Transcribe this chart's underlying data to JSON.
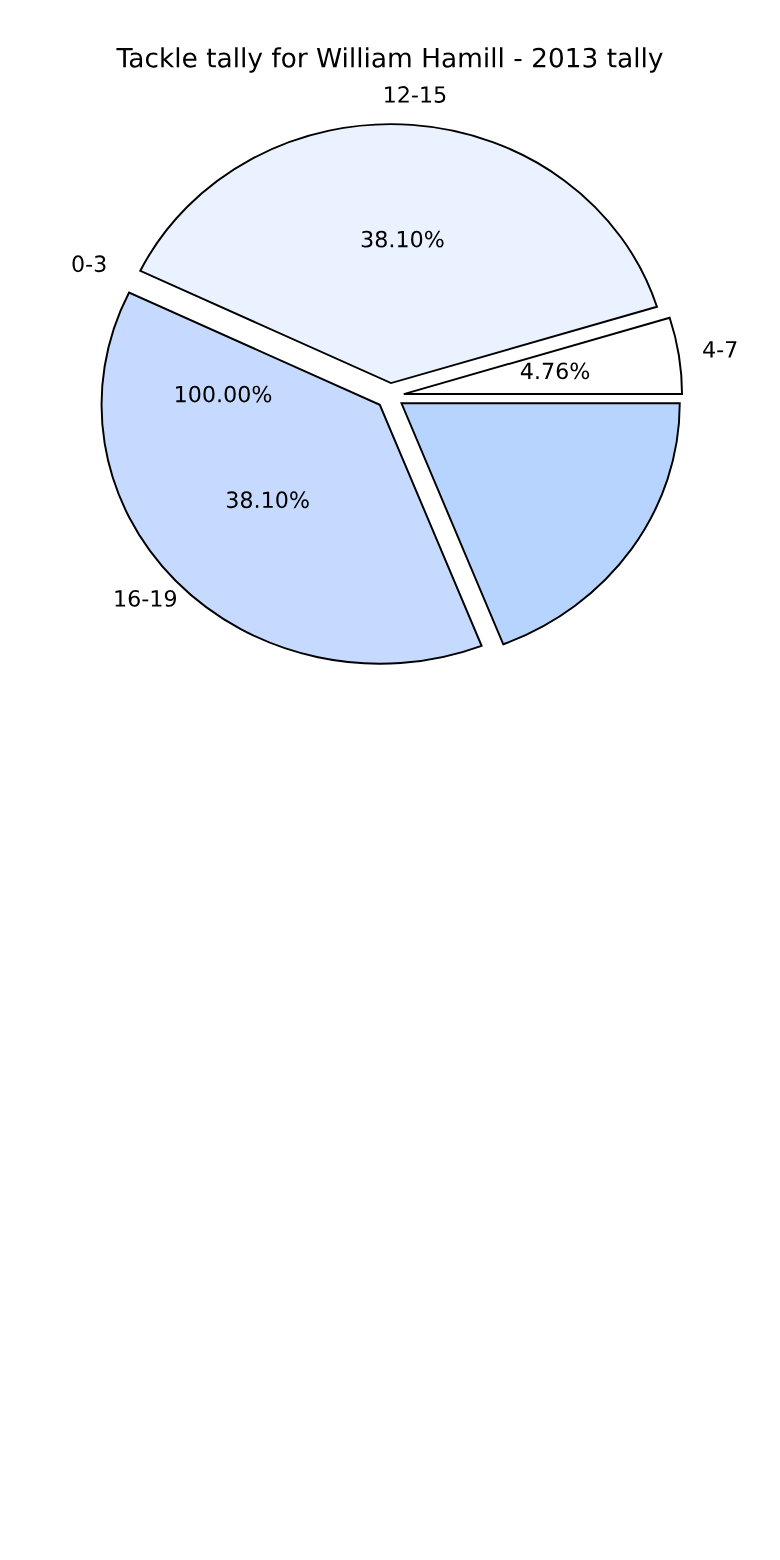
{
  "chart_data": {
    "type": "pie",
    "title": "Tackle tally for William Hamill - 2013 tally",
    "categories": [
      "4-7",
      "12-15",
      "0-3",
      "16-19",
      null
    ],
    "values": [
      4.76,
      38.1,
      0,
      38.1,
      19.04
    ],
    "value_labels": [
      "4.76%",
      "38.10%",
      null,
      "38.10%",
      null
    ],
    "annotations": [
      "100.00%"
    ],
    "colors": [
      "#ffffff",
      "#eaf1ff",
      "#dde8ff",
      "#c6d9ff",
      "#b6d4ff"
    ],
    "legend": false
  }
}
